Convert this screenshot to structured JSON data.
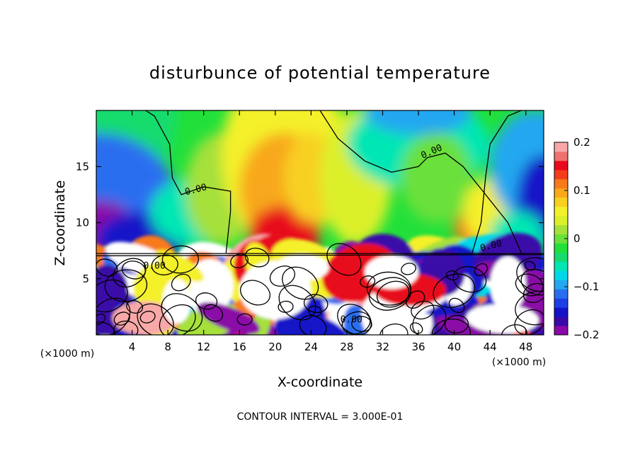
{
  "chart_data": {
    "type": "heatmap",
    "title": "disturbunce of potential temperature",
    "xlabel": "X-coordinate",
    "ylabel": "Z-coordinate",
    "x_unit": "(×1000 m)",
    "x_unit_left": "(×1000 m)",
    "x_unit_right": "(×1000 m)",
    "xlim": [
      0,
      50
    ],
    "ylim": [
      0,
      20
    ],
    "xticks": [
      4,
      8,
      12,
      16,
      20,
      24,
      28,
      32,
      36,
      40,
      44,
      48
    ],
    "xtick_labels": [
      "4",
      "8",
      "12",
      "16",
      "20",
      "24",
      "28",
      "32",
      "36",
      "40",
      "44",
      "48"
    ],
    "yticks": [
      5,
      10,
      15
    ],
    "ytick_labels": [
      "5",
      "10",
      "15"
    ],
    "colorbar": {
      "vmin": -0.2,
      "vmax": 0.2,
      "ticks": [
        0.2,
        0.1,
        0,
        -0.1,
        -0.2
      ],
      "tick_labels": [
        "0.2",
        "0.1",
        "0",
        "−0.1",
        "−0.2"
      ],
      "colors": [
        "#8a0aa8",
        "#3a0aa8",
        "#1414c8",
        "#1f3fe6",
        "#2a6ef0",
        "#22a7f0",
        "#00d8e8",
        "#00e6b4",
        "#16dc6e",
        "#22e03a",
        "#6ae03a",
        "#a6e03a",
        "#dcf02a",
        "#f4f02a",
        "#f8d020",
        "#f8a81a",
        "#f87a1a",
        "#f43c1a",
        "#e80a1a",
        "#f07070",
        "#f8a8a8"
      ]
    },
    "contour_interval_label": "CONTOUR INTERVAL = 3.000E-01",
    "contour_labels": [
      "0.00",
      "0.00",
      "0.00",
      "0.00",
      "0.00"
    ],
    "grid": false,
    "legend": "colorbar-right"
  }
}
